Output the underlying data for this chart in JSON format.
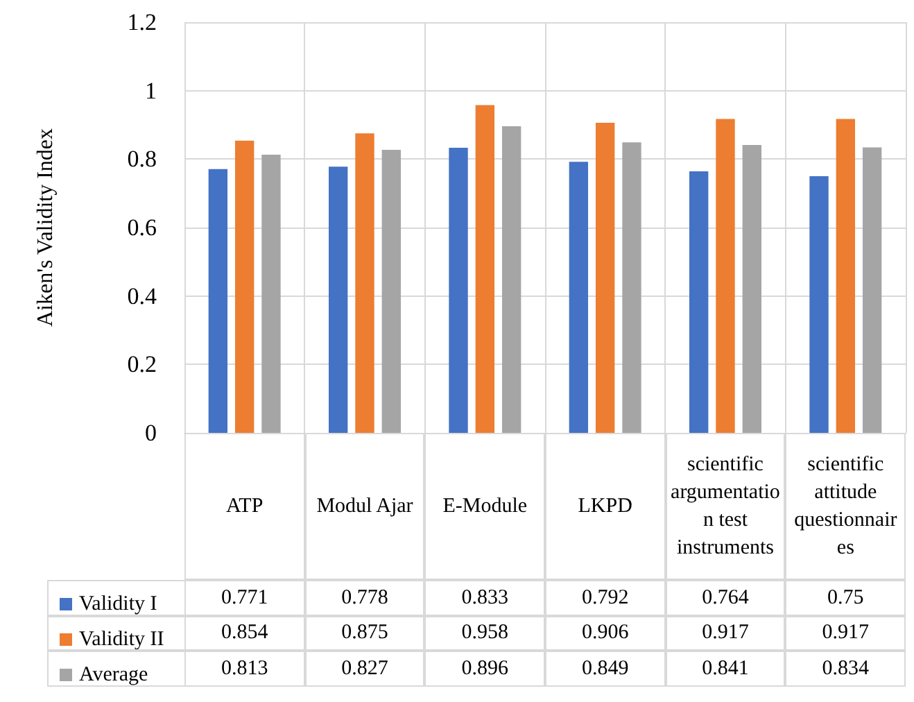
{
  "chart_data": {
    "type": "bar",
    "ylabel": "Aiken's Validity Index",
    "categories": [
      "ATP",
      "Modul Ajar",
      "E-Module",
      "LKPD",
      "scientific argumentation test instruments",
      "scientific attitude questionnaires"
    ],
    "series": [
      {
        "name": "Validity I",
        "color": "#4472c4",
        "values": [
          0.771,
          0.778,
          0.833,
          0.792,
          0.764,
          0.75
        ]
      },
      {
        "name": "Validity II",
        "color": "#ed7d31",
        "values": [
          0.854,
          0.875,
          0.958,
          0.906,
          0.917,
          0.917
        ]
      },
      {
        "name": "Average",
        "color": "#a5a5a5",
        "values": [
          0.813,
          0.827,
          0.896,
          0.849,
          0.841,
          0.834
        ]
      }
    ],
    "ylim": [
      0,
      1.2
    ],
    "yticks": [
      0,
      0.2,
      0.4,
      0.6,
      0.8,
      1,
      1.2
    ],
    "grid": true,
    "legend": "bottom",
    "data_labels": true
  }
}
